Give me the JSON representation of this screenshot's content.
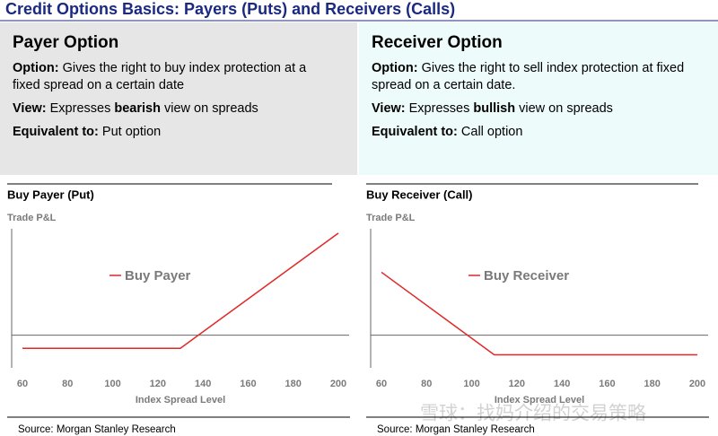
{
  "title": "Credit Options Basics: Payers (Puts) and Receivers (Calls)",
  "panels": [
    {
      "heading": "Payer Option",
      "items": [
        [
          {
            "text": "Option:",
            "bold": true
          },
          {
            "text": "Gives the right to buy index protection at a fixed spread on a certain date",
            "bold": false
          }
        ],
        [
          {
            "text": "View:",
            "bold": true
          },
          {
            "text": "Expresses",
            "bold": false
          },
          {
            "text": "bearish",
            "bold": true
          },
          {
            "text": "view on spreads",
            "bold": false
          }
        ],
        [
          {
            "text": "Equivalent to:",
            "bold": true
          },
          {
            "text": "Put option",
            "bold": false
          }
        ]
      ]
    },
    {
      "heading": "Receiver Option",
      "items": [
        [
          {
            "text": "Option:",
            "bold": true
          },
          {
            "text": "Gives the right to sell index protection at fixed spread on a certain date.",
            "bold": false
          }
        ],
        [
          {
            "text": "View:",
            "bold": true
          },
          {
            "text": "Expresses",
            "bold": false
          },
          {
            "text": "bullish",
            "bold": true
          },
          {
            "text": "view on spreads",
            "bold": false
          }
        ],
        [
          {
            "text": "Equivalent to:",
            "bold": true
          },
          {
            "text": "Call option",
            "bold": false
          }
        ]
      ]
    }
  ],
  "chart_data": [
    {
      "type": "line",
      "title": "Buy Payer (Put)",
      "y_label": "Trade P&L",
      "x_label": "Index Spread Level",
      "x": [
        60,
        130,
        200
      ],
      "series": [
        {
          "name": "Buy Payer",
          "color": "#e02828",
          "values": [
            -6,
            -6,
            47
          ]
        }
      ],
      "xlim": [
        60,
        200
      ],
      "xticks": [
        60,
        80,
        100,
        120,
        140,
        160,
        180,
        200
      ],
      "ylim": [
        -15,
        49
      ],
      "grid": false,
      "source": "Source: Morgan Stanley Research"
    },
    {
      "type": "line",
      "title": "Buy Receiver (Call)",
      "y_label": "Trade P&L",
      "x_label": "Index Spread Level",
      "x": [
        60,
        110,
        200
      ],
      "series": [
        {
          "name": "Buy Receiver",
          "color": "#e02828",
          "values": [
            29,
            -9,
            -9
          ]
        }
      ],
      "xlim": [
        60,
        200
      ],
      "xticks": [
        60,
        80,
        100,
        120,
        140,
        160,
        180,
        200
      ],
      "ylim": [
        -15,
        49
      ],
      "grid": false,
      "source": "Source: Morgan Stanley Research"
    }
  ],
  "watermark": "雪球：找妈介绍的交易策略"
}
